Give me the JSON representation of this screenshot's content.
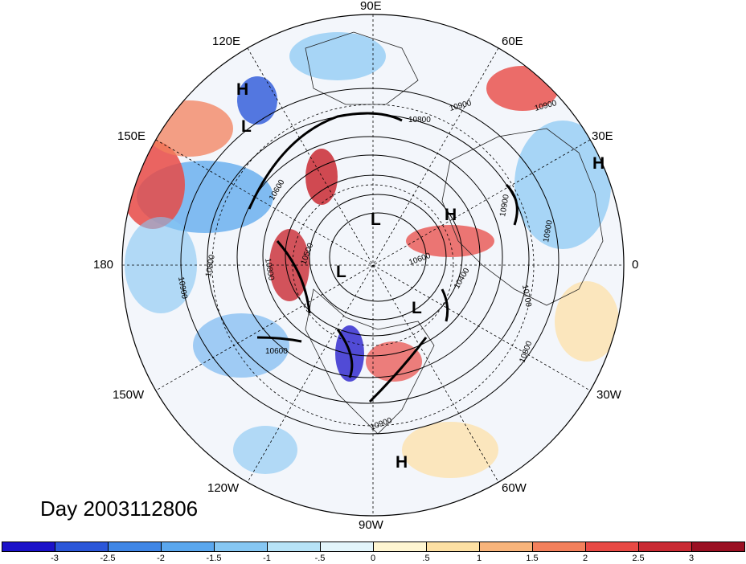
{
  "title": "Day 2003112806",
  "longitude_labels": [
    "90E",
    "60E",
    "30E",
    "0",
    "30W",
    "60W",
    "90W",
    "120W",
    "150W",
    "180",
    "150E",
    "120E"
  ],
  "pressure_centers": [
    "H",
    "L",
    "H",
    "L",
    "H",
    "L",
    "L",
    "H"
  ],
  "contour_labels": [
    "10900",
    "10800",
    "10600",
    "10900",
    "10900",
    "10600",
    "10400",
    "10700",
    "10800",
    "10900",
    "10900",
    "10800",
    "10600",
    "10900",
    "10800",
    "10500"
  ],
  "colorbar": {
    "ticks": [
      "-3",
      "-2.5",
      "-2",
      "-1.5",
      "-1",
      "-.5",
      "0",
      ".5",
      "1",
      "1.5",
      "2",
      "2.5",
      "3"
    ],
    "colors": [
      "#1b12c9",
      "#2b57d9",
      "#3f86e6",
      "#5aa7ee",
      "#86c7f3",
      "#b7e3f7",
      "#e3f5fb",
      "#fff6d2",
      "#fde0a3",
      "#f8b47b",
      "#f3805c",
      "#e84a45",
      "#c92a33",
      "#9a1022"
    ]
  },
  "chart_data": {
    "type": "polar stereographic map",
    "title": "Day 2003112806",
    "field": "shaded anomaly with geopotential height contours",
    "colorbar_range": [
      -3,
      3
    ],
    "colorbar_interval": 0.5
  }
}
